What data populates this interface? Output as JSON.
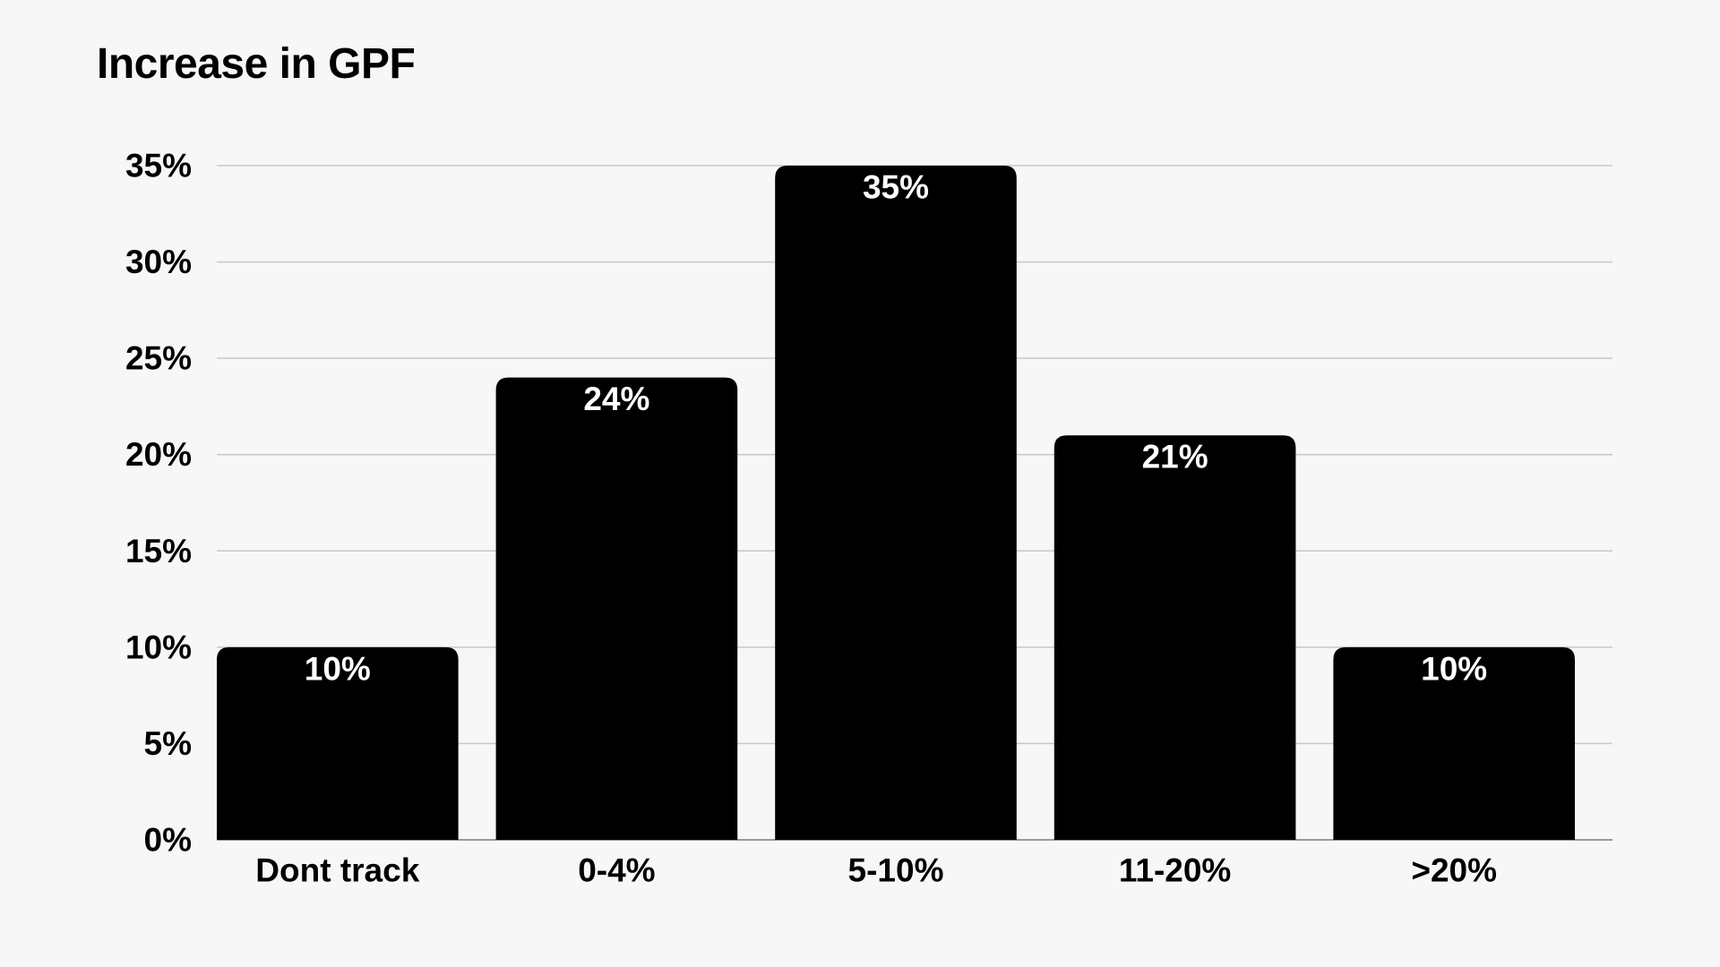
{
  "chart_data": {
    "type": "bar",
    "title": "Increase in GPF",
    "xlabel": "",
    "ylabel": "",
    "categories": [
      "Dont track",
      "0-4%",
      "5-10%",
      "11-20%",
      ">20%"
    ],
    "values": [
      10,
      24,
      35,
      21,
      10
    ],
    "data_labels": [
      "10%",
      "24%",
      "35%",
      "21%",
      "10%"
    ],
    "yticks": [
      0,
      5,
      10,
      15,
      20,
      25,
      30,
      35
    ],
    "ytick_labels": [
      "0%",
      "5%",
      "10%",
      "15%",
      "20%",
      "25%",
      "30%",
      "35%"
    ],
    "ylim": [
      0,
      35
    ],
    "grid": true,
    "legend": "none",
    "colors": {
      "bar": "#000000",
      "grid": "#c8c8c8",
      "background": "#f7f7f7",
      "data_label": "#ffffff"
    }
  }
}
